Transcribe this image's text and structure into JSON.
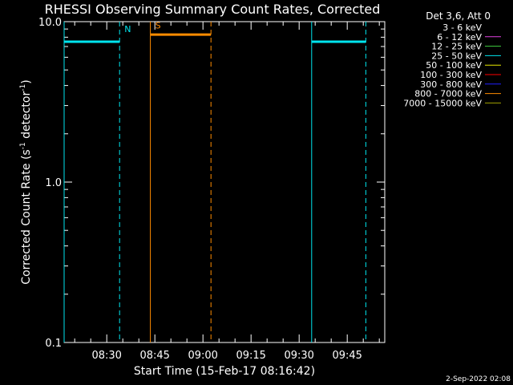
{
  "chart_data": {
    "type": "line",
    "title": "RHESSI Observing Summary Count Rates, Corrected",
    "xlabel": "Start Time (15-Feb-17 08:16:42)",
    "ylabel_main": "Corrected Count Rate (s",
    "ylabel_sup1": "-1",
    "ylabel_mid": " detector",
    "ylabel_sup2": "-1",
    "ylabel_end": ")",
    "y_scale": "log",
    "ylim": [
      0.1,
      10.0
    ],
    "y_ticks": [
      {
        "value": 0.1,
        "label": "0.1"
      },
      {
        "value": 1.0,
        "label": "1.0"
      },
      {
        "value": 10.0,
        "label": "10.0"
      }
    ],
    "xlim_minutes": [
      496.7,
      596.7
    ],
    "x_ticks": [
      {
        "minutes": 510,
        "label": "08:30"
      },
      {
        "minutes": 525,
        "label": "08:45"
      },
      {
        "minutes": 540,
        "label": "09:00"
      },
      {
        "minutes": 555,
        "label": "09:15"
      },
      {
        "minutes": 570,
        "label": "09:30"
      },
      {
        "minutes": 585,
        "label": "09:45"
      }
    ],
    "legend_title": "Det 3,6, Att 0",
    "legend": [
      {
        "label": "3 - 6 keV",
        "color": "#000000"
      },
      {
        "label": "6 - 12 keV",
        "color": "#e040e0"
      },
      {
        "label": "12 - 25 keV",
        "color": "#40d040"
      },
      {
        "label": "25 - 50 keV",
        "color": "#00e5ee"
      },
      {
        "label": "50 - 100 keV",
        "color": "#e8e800"
      },
      {
        "label": "100 - 300 keV",
        "color": "#ff0000"
      },
      {
        "label": "300 - 800 keV",
        "color": "#2020ff"
      },
      {
        "label": "800 - 7000 keV",
        "color": "#ff8c00"
      },
      {
        "label": "7000 - 15000 keV",
        "color": "#a0a000"
      }
    ],
    "series": [
      {
        "name": "25 - 50 keV",
        "color": "#00e5ee",
        "segments": [
          {
            "x": [
              496.7,
              514.0
            ],
            "y": [
              7.5,
              7.5
            ]
          },
          {
            "x": [
              573.9,
              590.8
            ],
            "y": [
              7.5,
              7.5
            ]
          }
        ]
      },
      {
        "name": "800 - 7000 keV",
        "color": "#ff8c00",
        "segments": [
          {
            "x": [
              523.6,
              542.5
            ],
            "y": [
              8.3,
              8.3
            ]
          }
        ]
      }
    ],
    "markers": [
      {
        "label": "N",
        "color": "#00e5ee",
        "x": 514.0,
        "label_y": 9.0,
        "style": "dashed"
      },
      {
        "label": "",
        "color": "#00e5ee",
        "x": 496.7,
        "label_y": 9.0,
        "style": "solid"
      },
      {
        "label": "S",
        "color": "#ff8c00",
        "x": 523.6,
        "label_y": 9.5,
        "style": "solid"
      },
      {
        "label": "",
        "color": "#ff8c00",
        "x": 542.5,
        "label_y": 9.5,
        "style": "dashed"
      },
      {
        "label": "",
        "color": "#00e5ee",
        "x": 573.9,
        "label_y": 9.0,
        "style": "solid"
      },
      {
        "label": "",
        "color": "#00e5ee",
        "x": 590.8,
        "label_y": 9.0,
        "style": "dashed"
      }
    ],
    "footer_date": "2-Sep-2022 02:08"
  }
}
